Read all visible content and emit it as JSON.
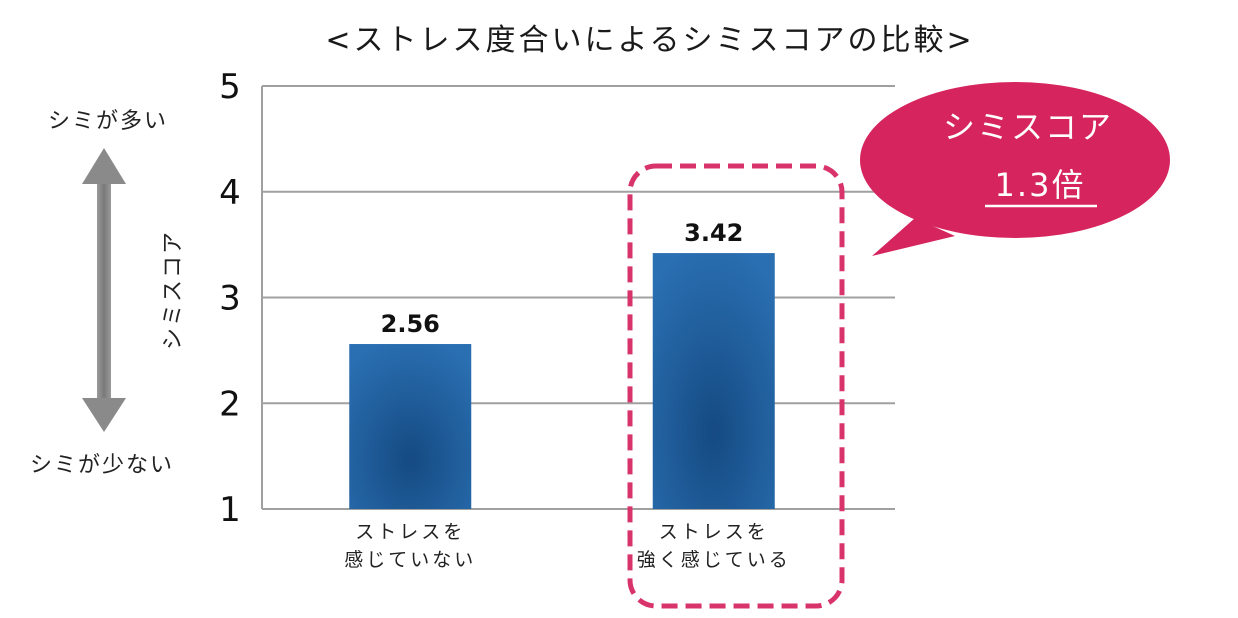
{
  "chart_data": {
    "type": "bar",
    "title": "<ストレス度合いによるシミスコアの比較>",
    "ylabel": "シミスコア",
    "categories": [
      [
        "ストレスを",
        "感じていない"
      ],
      [
        "ストレスを",
        "強く感じている"
      ]
    ],
    "values": [
      2.56,
      3.42
    ],
    "value_labels": [
      "2.56",
      "3.42"
    ],
    "ylim": [
      1,
      5
    ],
    "yticks": [
      1,
      2,
      3,
      4,
      5
    ],
    "grid": true,
    "highlight_index": 1
  },
  "side_labels": {
    "top": "シミが多い",
    "bottom": "シミが少ない"
  },
  "callout": {
    "line1": "シミスコア",
    "line2": "1.3倍"
  },
  "colors": {
    "bar": "#1f63a6",
    "bar_dark": "#174d85",
    "highlight": "#d8336a",
    "bubble": "#d6245e",
    "grid": "#a0a0a0",
    "arrow": "#8a8a8a"
  }
}
